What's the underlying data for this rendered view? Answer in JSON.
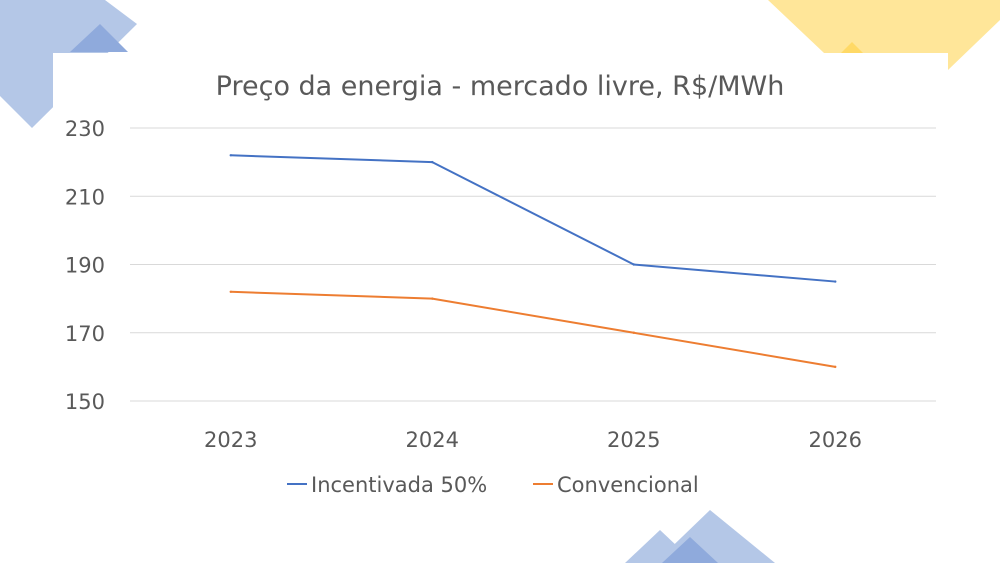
{
  "chart_data": {
    "type": "line",
    "title": "Preço da energia - mercado livre, R$/MWh",
    "categories": [
      "2023",
      "2024",
      "2025",
      "2026"
    ],
    "series": [
      {
        "name": "Incentivada 50%",
        "values": [
          222,
          220,
          190,
          185
        ],
        "color": "#4472C4"
      },
      {
        "name": "Convencional",
        "values": [
          182,
          180,
          170,
          160
        ],
        "color": "#ED7D31"
      }
    ],
    "ylim": [
      150,
      230
    ],
    "yticks": [
      150,
      170,
      190,
      210,
      230
    ],
    "grid": true,
    "legend_position": "bottom"
  },
  "decor_colors": {
    "blue": "#8FAADC",
    "blue_dark": "#6F8FD0",
    "yellow": "#FFD966"
  }
}
